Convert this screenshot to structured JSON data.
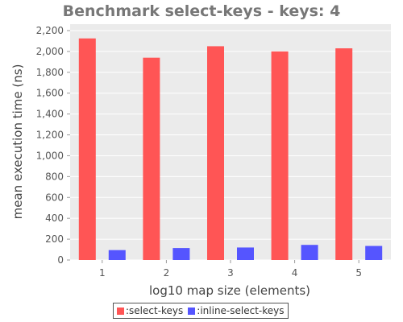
{
  "chart_data": {
    "type": "bar",
    "title": "Benchmark select-keys - keys: 4",
    "xlabel": "log10 map size (elements)",
    "ylabel": "mean execution time (ns)",
    "categories": [
      "1",
      "2",
      "3",
      "4",
      "5"
    ],
    "ylim": [
      0,
      2200
    ],
    "yticks": [
      0,
      200,
      400,
      600,
      800,
      1000,
      1200,
      1400,
      1600,
      1800,
      2000,
      2200
    ],
    "ytick_labels": [
      "0",
      "200",
      "400",
      "600",
      "800",
      "1,000",
      "1,200",
      "1,400",
      "1,600",
      "1,800",
      "2,000",
      "2,200"
    ],
    "grid": true,
    "legend_position": "bottom",
    "series": [
      {
        "name": ":select-keys",
        "color": "#ff5555",
        "values": [
          2125,
          1940,
          2050,
          2000,
          2030
        ]
      },
      {
        "name": ":inline-select-keys",
        "color": "#5555ff",
        "values": [
          95,
          115,
          120,
          145,
          135
        ]
      }
    ]
  }
}
